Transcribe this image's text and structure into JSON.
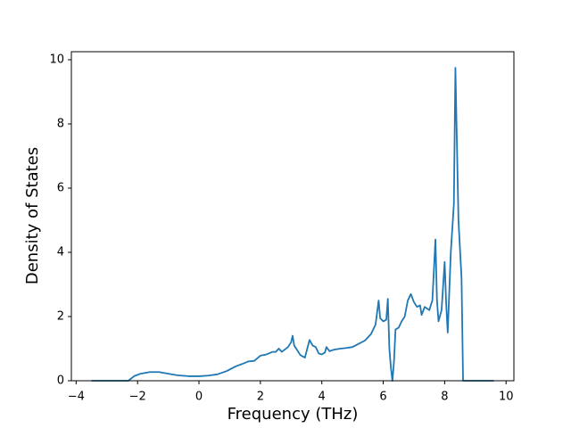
{
  "chart_data": {
    "type": "line",
    "x_label": "Frequency (THz)",
    "y_label": "Density of States",
    "xlim": [
      -4.155,
      10.255
    ],
    "ylim": [
      0,
      10.25
    ],
    "xticks": [
      {
        "value": -4,
        "label": "−4"
      },
      {
        "value": -2,
        "label": "−2"
      },
      0,
      2,
      4,
      6,
      8,
      10
    ],
    "yticks": [
      0,
      2,
      4,
      6,
      8,
      10
    ],
    "grid": false,
    "x": [
      -3.5,
      -2.3,
      -2.1,
      -1.9,
      -1.6,
      -1.3,
      -1.0,
      -0.7,
      -0.3,
      0,
      0.3,
      0.6,
      0.9,
      1.2,
      1.4,
      1.6,
      1.8,
      2.0,
      2.2,
      2.4,
      2.5,
      2.6,
      2.7,
      2.9,
      3.0,
      3.05,
      3.1,
      3.3,
      3.45,
      3.6,
      3.7,
      3.8,
      3.9,
      4.0,
      4.1,
      4.15,
      4.25,
      4.4,
      4.6,
      4.8,
      5.0,
      5.2,
      5.4,
      5.6,
      5.75,
      5.85,
      5.9,
      6.0,
      6.1,
      6.15,
      6.2,
      6.25,
      6.3,
      6.35,
      6.4,
      6.5,
      6.6,
      6.7,
      6.8,
      6.9,
      7.0,
      7.1,
      7.2,
      7.25,
      7.35,
      7.5,
      7.6,
      7.7,
      7.75,
      7.8,
      7.9,
      8.0,
      8.05,
      8.1,
      8.2,
      8.3,
      8.35,
      8.45,
      8.55,
      8.6,
      9.6
    ],
    "series": [
      {
        "color": "#1f77b4",
        "values": [
          0,
          0,
          0.15,
          0.22,
          0.27,
          0.27,
          0.22,
          0.17,
          0.14,
          0.14,
          0.16,
          0.2,
          0.3,
          0.45,
          0.52,
          0.6,
          0.62,
          0.78,
          0.82,
          0.9,
          0.9,
          1.0,
          0.9,
          1.05,
          1.2,
          1.4,
          1.1,
          0.8,
          0.72,
          1.27,
          1.1,
          1.05,
          0.85,
          0.82,
          0.88,
          1.05,
          0.92,
          0.97,
          1.0,
          1.02,
          1.05,
          1.15,
          1.25,
          1.45,
          1.75,
          2.5,
          1.95,
          1.85,
          1.9,
          2.55,
          1.0,
          0.4,
          0.0,
          0.6,
          1.6,
          1.65,
          1.85,
          2.0,
          2.5,
          2.7,
          2.45,
          2.3,
          2.35,
          2.05,
          2.3,
          2.2,
          2.5,
          4.4,
          2.5,
          1.85,
          2.2,
          3.7,
          2.4,
          1.5,
          4.0,
          5.5,
          9.75,
          5.0,
          3.2,
          0,
          0
        ]
      }
    ]
  }
}
